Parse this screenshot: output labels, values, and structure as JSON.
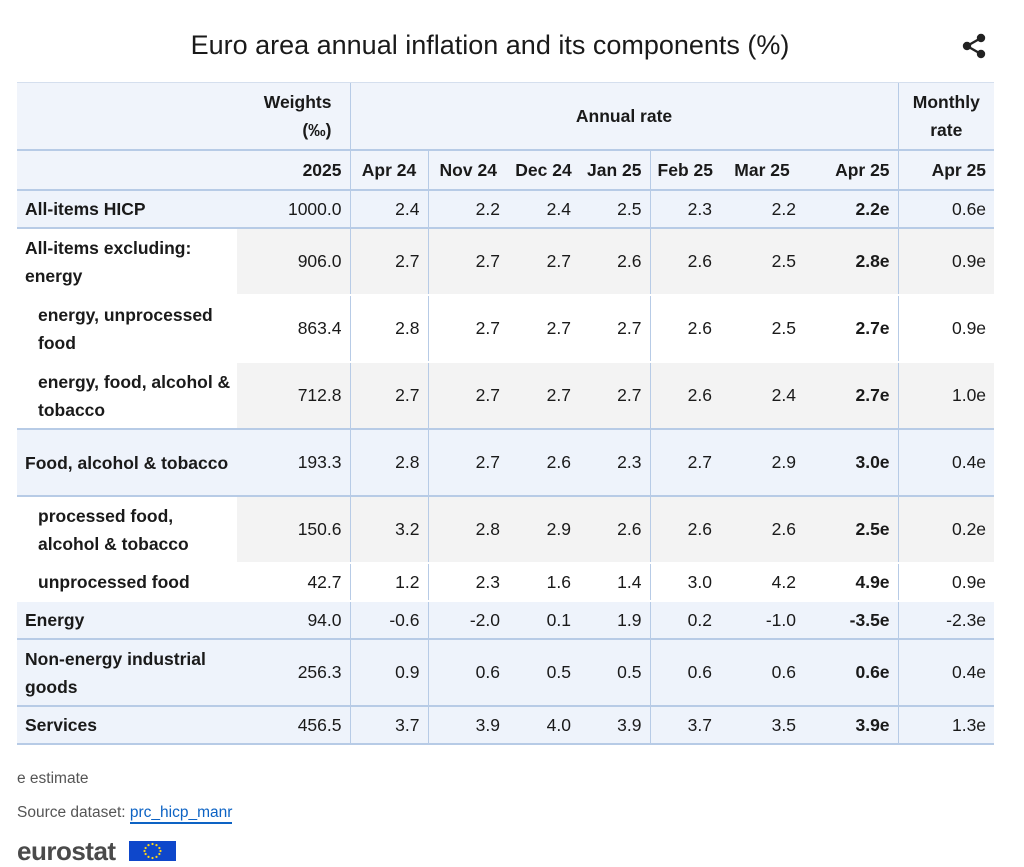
{
  "title": "Euro area annual inflation and its components (%)",
  "icons": {
    "share": "share-icon"
  },
  "chart_data": {
    "type": "table",
    "header_groups": [
      "Weights (‰)",
      "Annual rate",
      "Monthly rate"
    ],
    "header_weights_line1": "Weights",
    "header_weights_line2": "(‰)",
    "header_annual": "Annual rate",
    "header_monthly_line1": "Monthly",
    "header_monthly_line2": "rate",
    "columns": [
      "2025",
      "Apr 24",
      "Nov 24",
      "Dec 24",
      "Jan 25",
      "Feb 25",
      "Mar 25",
      "Apr 25",
      "Apr 25"
    ],
    "rows": [
      {
        "label": "All-items HICP",
        "values": [
          "1000.0",
          "2.4",
          "2.2",
          "2.4",
          "2.5",
          "2.3",
          "2.2",
          "2.2e",
          "0.6e"
        ]
      },
      {
        "label": "All-items excluding: energy",
        "values": [
          "906.0",
          "2.7",
          "2.7",
          "2.7",
          "2.6",
          "2.6",
          "2.5",
          "2.8e",
          "0.9e"
        ]
      },
      {
        "label": "energy, unprocessed food",
        "values": [
          "863.4",
          "2.8",
          "2.7",
          "2.7",
          "2.7",
          "2.6",
          "2.5",
          "2.7e",
          "0.9e"
        ]
      },
      {
        "label": "energy, food, alcohol & tobacco",
        "values": [
          "712.8",
          "2.7",
          "2.7",
          "2.7",
          "2.7",
          "2.6",
          "2.4",
          "2.7e",
          "1.0e"
        ]
      },
      {
        "label": "Food, alcohol & tobacco",
        "values": [
          "193.3",
          "2.8",
          "2.7",
          "2.6",
          "2.3",
          "2.7",
          "2.9",
          "3.0e",
          "0.4e"
        ]
      },
      {
        "label": "processed food, alcohol & tobacco",
        "values": [
          "150.6",
          "3.2",
          "2.8",
          "2.9",
          "2.6",
          "2.6",
          "2.6",
          "2.5e",
          "0.2e"
        ]
      },
      {
        "label": "unprocessed food",
        "values": [
          "42.7",
          "1.2",
          "2.3",
          "1.6",
          "1.4",
          "3.0",
          "4.2",
          "4.9e",
          "0.9e"
        ]
      },
      {
        "label": "Energy",
        "values": [
          "94.0",
          "-0.6",
          "-2.0",
          "0.1",
          "1.9",
          "0.2",
          "-1.0",
          "-3.5e",
          "-2.3e"
        ]
      },
      {
        "label": "Non-energy industrial goods",
        "values": [
          "256.3",
          "0.9",
          "0.6",
          "0.5",
          "0.5",
          "0.6",
          "0.6",
          "0.6e",
          "0.4e"
        ]
      },
      {
        "label": "Services",
        "values": [
          "456.5",
          "3.7",
          "3.9",
          "4.0",
          "3.9",
          "3.7",
          "3.5",
          "3.9e",
          "1.3e"
        ]
      }
    ]
  },
  "footer": {
    "note": "e estimate",
    "source_prefix": "Source dataset: ",
    "source_link": "prc_hicp_manr",
    "logo": "eurostat"
  },
  "colors": {
    "header_bg": "#f0f4fb",
    "border": "#b7cbe6",
    "link": "#0d63c4",
    "flag": "#0e47cb"
  }
}
